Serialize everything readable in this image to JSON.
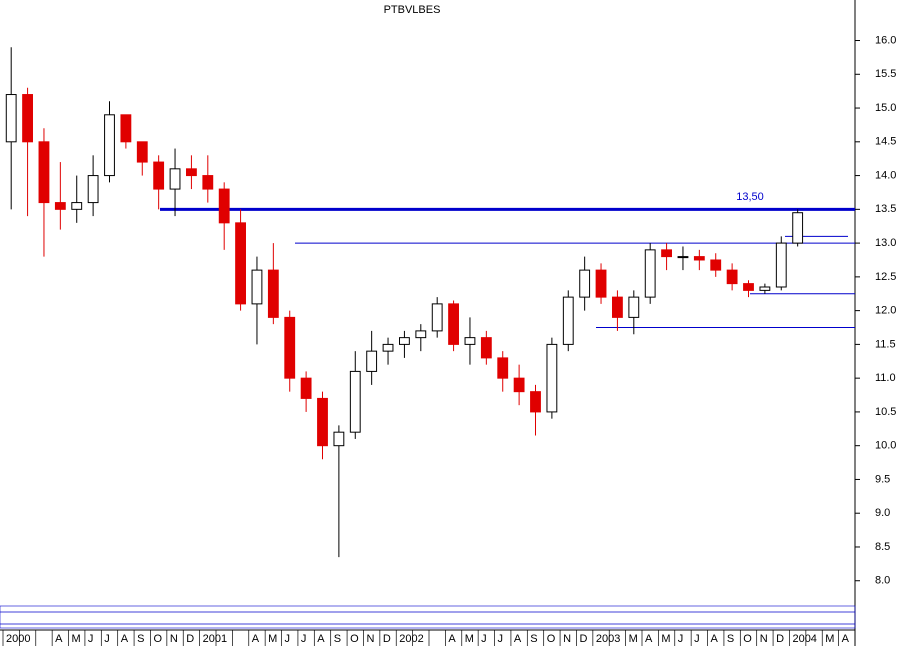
{
  "chart_data": {
    "type": "candlestick",
    "title": "PTBVLBES",
    "categories": [
      "2000",
      null,
      null,
      "A",
      "M",
      "J",
      "J",
      "A",
      "S",
      "O",
      "N",
      "D",
      "2001",
      null,
      null,
      "A",
      "M",
      "J",
      "J",
      "A",
      "S",
      "O",
      "N",
      "D",
      "2002",
      null,
      null,
      "A",
      "M",
      "J",
      "J",
      "A",
      "S",
      "O",
      "N",
      "D",
      "2003",
      null,
      "M",
      "A",
      "M",
      "J",
      "J",
      "A",
      "S",
      "O",
      "N",
      "D",
      "2004",
      null,
      "M",
      "A"
    ],
    "open": [
      14.5,
      15.2,
      14.5,
      13.6,
      13.5,
      13.6,
      14.0,
      14.9,
      14.5,
      14.2,
      13.8,
      14.1,
      14.0,
      13.8,
      13.3,
      12.1,
      12.6,
      11.9,
      11.0,
      10.7,
      10.0,
      10.2,
      11.1,
      11.4,
      11.5,
      11.6,
      11.7,
      12.1,
      11.5,
      11.6,
      11.3,
      11.0,
      10.8,
      10.5,
      11.5,
      12.2,
      12.6,
      12.2,
      11.9,
      12.2,
      12.9,
      12.8,
      12.8,
      12.75,
      12.6,
      12.4,
      12.3,
      12.35,
      13.0,
      null,
      null,
      null
    ],
    "high": [
      15.9,
      15.3,
      14.7,
      14.2,
      14.0,
      14.3,
      15.1,
      14.9,
      14.5,
      14.3,
      14.4,
      14.3,
      14.3,
      13.9,
      13.5,
      12.8,
      13.0,
      12.0,
      11.1,
      10.8,
      10.3,
      11.4,
      11.7,
      11.6,
      11.7,
      11.8,
      12.2,
      12.15,
      11.9,
      11.7,
      11.4,
      11.2,
      10.9,
      11.6,
      12.3,
      12.8,
      12.7,
      12.3,
      12.3,
      13.0,
      13.0,
      12.95,
      12.9,
      12.85,
      12.7,
      12.45,
      12.4,
      13.1,
      13.5,
      null,
      null,
      null
    ],
    "low": [
      13.5,
      13.4,
      12.8,
      13.2,
      13.3,
      13.4,
      13.9,
      14.4,
      14.0,
      13.5,
      13.4,
      13.8,
      13.6,
      12.9,
      12.0,
      11.5,
      11.8,
      10.8,
      10.5,
      9.8,
      8.35,
      10.1,
      10.9,
      11.2,
      11.3,
      11.4,
      11.6,
      11.4,
      11.2,
      11.2,
      10.8,
      10.6,
      10.15,
      10.4,
      11.4,
      12.0,
      12.1,
      11.7,
      11.65,
      12.1,
      12.6,
      12.6,
      12.6,
      12.5,
      12.3,
      12.2,
      12.25,
      12.3,
      12.95,
      null,
      null,
      null
    ],
    "close": [
      15.2,
      14.5,
      13.6,
      13.5,
      13.6,
      14.0,
      14.9,
      14.5,
      14.2,
      13.8,
      14.1,
      14.0,
      13.8,
      13.3,
      12.1,
      12.6,
      11.9,
      11.0,
      10.7,
      10.0,
      10.2,
      11.1,
      11.4,
      11.5,
      11.6,
      11.7,
      12.1,
      11.5,
      11.6,
      11.3,
      11.0,
      10.8,
      10.5,
      11.5,
      12.2,
      12.6,
      12.2,
      11.9,
      12.2,
      12.9,
      12.8,
      12.8,
      12.75,
      12.6,
      12.4,
      12.3,
      12.35,
      13.0,
      13.45,
      null,
      null,
      null
    ],
    "up_color": "#000000",
    "down_color": "#e00000",
    "ylim": [
      7.7,
      16.6
    ],
    "yticks": [
      {
        "value": 8,
        "label": "8.0"
      },
      8.5,
      {
        "value": 9,
        "label": "9.0"
      },
      9.5,
      {
        "value": 10,
        "label": "10.0"
      },
      10.5,
      {
        "value": 11,
        "label": "11.0"
      },
      11.5,
      {
        "value": 12,
        "label": "12.0"
      },
      12.5,
      {
        "value": 13,
        "label": "13.0"
      },
      13.5,
      {
        "value": 14,
        "label": "14.0"
      },
      14.5,
      {
        "value": 15,
        "label": "15.0"
      },
      15.5,
      {
        "value": 16,
        "label": "16.0"
      }
    ],
    "levels": [
      {
        "value": 13.5,
        "label": "13,50"
      },
      {
        "value": 13.0
      },
      {
        "value": 13.1
      },
      {
        "value": 12.25
      },
      {
        "value": 11.75
      }
    ],
    "level_color": "#0000cc"
  }
}
